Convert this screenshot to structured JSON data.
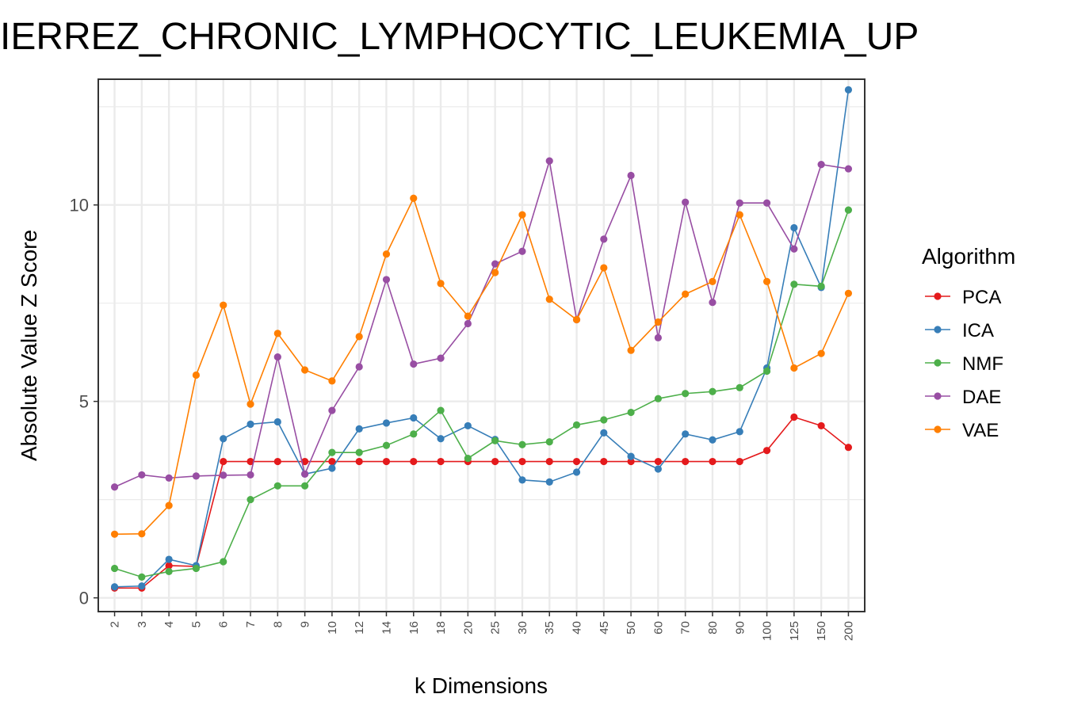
{
  "chart_data": {
    "type": "line",
    "title": "IERREZ_CHRONIC_LYMPHOCYTIC_LEUKEMIA_UP",
    "xlabel": "k Dimensions",
    "ylabel": "Absolute Value Z Score",
    "categories": [
      "2",
      "3",
      "4",
      "5",
      "6",
      "7",
      "8",
      "9",
      "10",
      "12",
      "14",
      "16",
      "18",
      "20",
      "25",
      "30",
      "35",
      "40",
      "45",
      "50",
      "60",
      "70",
      "80",
      "90",
      "100",
      "125",
      "150",
      "200"
    ],
    "y_ticks": [
      0,
      5,
      10
    ],
    "ylim": [
      -0.35,
      13.2
    ],
    "grid": true,
    "legend": {
      "title": "Algorithm",
      "position": "right"
    },
    "series": [
      {
        "name": "PCA",
        "color": "#E41A1C",
        "values": [
          0.25,
          0.25,
          0.82,
          0.8,
          3.47,
          3.47,
          3.47,
          3.47,
          3.47,
          3.47,
          3.47,
          3.47,
          3.47,
          3.47,
          3.47,
          3.47,
          3.47,
          3.47,
          3.47,
          3.47,
          3.47,
          3.47,
          3.47,
          3.47,
          3.75,
          4.6,
          4.38,
          3.83
        ]
      },
      {
        "name": "ICA",
        "color": "#377EB8",
        "values": [
          0.28,
          0.3,
          0.98,
          0.82,
          4.05,
          4.42,
          4.48,
          3.15,
          3.3,
          4.3,
          4.45,
          4.58,
          4.05,
          4.38,
          4.03,
          3.0,
          2.95,
          3.2,
          4.2,
          3.6,
          3.28,
          4.17,
          4.02,
          4.23,
          5.85,
          9.42,
          7.9,
          12.93
        ]
      },
      {
        "name": "NMF",
        "color": "#4DAF4A",
        "values": [
          0.75,
          0.53,
          0.67,
          0.75,
          0.92,
          2.5,
          2.85,
          2.85,
          3.7,
          3.7,
          3.88,
          4.17,
          4.77,
          3.55,
          4.0,
          3.9,
          3.97,
          4.4,
          4.53,
          4.72,
          5.07,
          5.2,
          5.25,
          5.35,
          5.77,
          7.98,
          7.93,
          9.87
        ]
      },
      {
        "name": "DAE",
        "color": "#984EA3",
        "values": [
          2.82,
          3.13,
          3.05,
          3.1,
          3.12,
          3.13,
          6.13,
          3.15,
          4.77,
          5.88,
          8.1,
          5.95,
          6.1,
          6.98,
          8.5,
          8.82,
          11.12,
          7.08,
          9.13,
          10.75,
          6.62,
          10.07,
          7.52,
          10.05,
          10.05,
          8.88,
          11.03,
          10.92
        ]
      },
      {
        "name": "VAE",
        "color": "#FF7F00",
        "values": [
          1.62,
          1.63,
          2.35,
          5.67,
          7.45,
          4.93,
          6.73,
          5.8,
          5.52,
          6.65,
          8.75,
          10.17,
          8.0,
          7.17,
          8.28,
          9.75,
          7.6,
          7.08,
          8.4,
          6.3,
          7.02,
          7.73,
          8.05,
          9.75,
          8.05,
          5.85,
          6.22,
          7.75
        ]
      }
    ]
  }
}
